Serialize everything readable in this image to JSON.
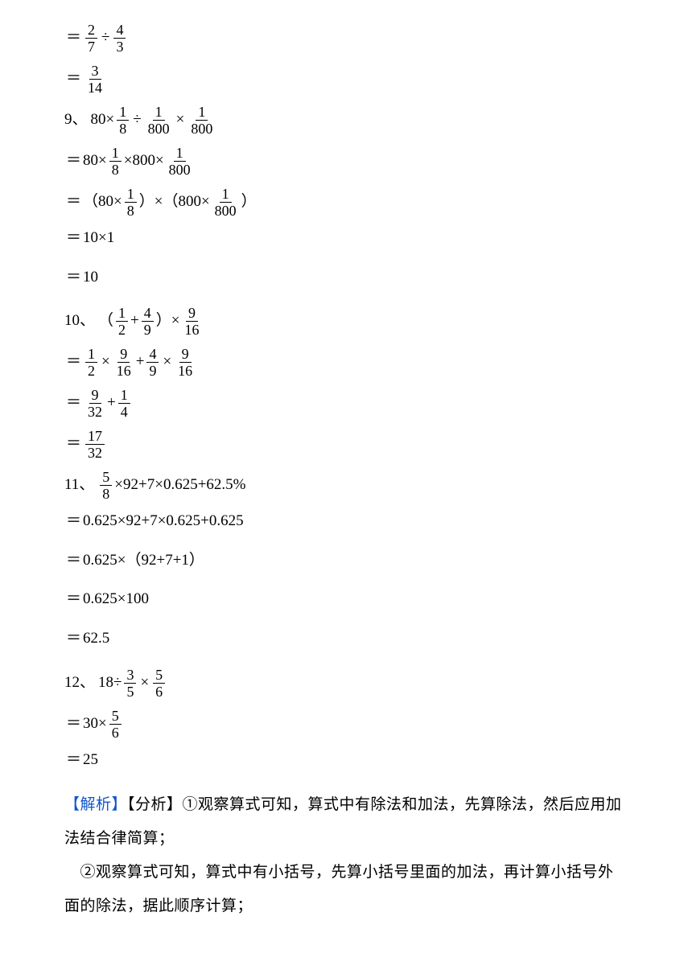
{
  "colors": {
    "text": "#000000",
    "link": "#1155cc",
    "background": "#ffffff",
    "border": "#000000"
  },
  "typography": {
    "body_fontsize": 19,
    "frac_fontsize": 18,
    "line_height_body": 1.4,
    "line_height_explain": 2.2,
    "font_family": "SimSun / 宋体"
  },
  "lines": [
    {
      "type": "math",
      "eq": true,
      "segments": [
        {
          "t": "frac",
          "n": "2",
          "d": "7"
        },
        {
          "t": "op",
          "v": "÷"
        },
        {
          "t": "frac",
          "n": "4",
          "d": "3"
        }
      ]
    },
    {
      "type": "math",
      "eq": true,
      "segments": [
        {
          "t": "frac",
          "n": "3",
          "d": "14"
        }
      ]
    },
    {
      "type": "math",
      "eq": false,
      "prefix": "9、",
      "segments": [
        {
          "t": "text",
          "v": "80×"
        },
        {
          "t": "frac",
          "n": "1",
          "d": "8"
        },
        {
          "t": "op",
          "v": "÷"
        },
        {
          "t": "frac",
          "n": "1",
          "d": "800"
        },
        {
          "t": "op",
          "v": "×"
        },
        {
          "t": "frac",
          "n": "1",
          "d": "800"
        }
      ]
    },
    {
      "type": "math",
      "eq": true,
      "eqstyle": "＝",
      "segments": [
        {
          "t": "text",
          "v": "80×"
        },
        {
          "t": "frac",
          "n": "1",
          "d": "8"
        },
        {
          "t": "text",
          "v": "×800×"
        },
        {
          "t": "frac",
          "n": "1",
          "d": "800"
        }
      ]
    },
    {
      "type": "math",
      "eq": true,
      "eqstyle": "＝",
      "segments": [
        {
          "t": "text",
          "v": "（80×"
        },
        {
          "t": "frac",
          "n": "1",
          "d": "8"
        },
        {
          "t": "text",
          "v": "）×（800×"
        },
        {
          "t": "frac",
          "n": "1",
          "d": "800"
        },
        {
          "t": "text",
          "v": "）"
        }
      ]
    },
    {
      "type": "math",
      "eq": true,
      "eqstyle": "＝",
      "wide": true,
      "segments": [
        {
          "t": "text",
          "v": "10×1"
        }
      ]
    },
    {
      "type": "math",
      "eq": true,
      "eqstyle": "＝",
      "wide": true,
      "segments": [
        {
          "t": "text",
          "v": "10"
        }
      ]
    },
    {
      "type": "math",
      "eq": false,
      "prefix": "10、",
      "segments": [
        {
          "t": "text",
          "v": "（"
        },
        {
          "t": "frac",
          "n": "1",
          "d": "2"
        },
        {
          "t": "text",
          "v": "+"
        },
        {
          "t": "frac",
          "n": "4",
          "d": "9"
        },
        {
          "t": "text",
          "v": "）×"
        },
        {
          "t": "frac",
          "n": "9",
          "d": "16"
        }
      ]
    },
    {
      "type": "math",
      "eq": true,
      "segments": [
        {
          "t": "frac",
          "n": "1",
          "d": "2"
        },
        {
          "t": "op",
          "v": "×"
        },
        {
          "t": "frac",
          "n": "9",
          "d": "16"
        },
        {
          "t": "text",
          "v": "+"
        },
        {
          "t": "frac",
          "n": "4",
          "d": "9"
        },
        {
          "t": "op",
          "v": "×"
        },
        {
          "t": "frac",
          "n": "9",
          "d": "16"
        }
      ]
    },
    {
      "type": "math",
      "eq": true,
      "segments": [
        {
          "t": "frac",
          "n": "9",
          "d": "32"
        },
        {
          "t": "text",
          "v": "+"
        },
        {
          "t": "frac",
          "n": "1",
          "d": "4"
        }
      ]
    },
    {
      "type": "math",
      "eq": true,
      "segments": [
        {
          "t": "frac",
          "n": "17",
          "d": "32"
        }
      ]
    },
    {
      "type": "math",
      "eq": false,
      "prefix": "11、",
      "segments": [
        {
          "t": "frac",
          "n": "5",
          "d": "8"
        },
        {
          "t": "text",
          "v": "×92+7×0.625+62.5%"
        }
      ]
    },
    {
      "type": "math",
      "eq": true,
      "eqstyle": "＝",
      "wide": true,
      "segments": [
        {
          "t": "text",
          "v": "0.625×92+7×0.625+0.625"
        }
      ]
    },
    {
      "type": "math",
      "eq": true,
      "eqstyle": "＝",
      "wide": true,
      "segments": [
        {
          "t": "text",
          "v": "0.625×（92+7+1）"
        }
      ]
    },
    {
      "type": "math",
      "eq": true,
      "eqstyle": "＝",
      "wide": true,
      "segments": [
        {
          "t": "text",
          "v": "0.625×100"
        }
      ]
    },
    {
      "type": "math",
      "eq": true,
      "eqstyle": "＝",
      "wide": true,
      "segments": [
        {
          "t": "text",
          "v": "62.5"
        }
      ]
    },
    {
      "type": "math",
      "eq": false,
      "prefix": "12、",
      "segments": [
        {
          "t": "text",
          "v": "18÷"
        },
        {
          "t": "frac",
          "n": "3",
          "d": "5"
        },
        {
          "t": "op",
          "v": "×"
        },
        {
          "t": "frac",
          "n": "5",
          "d": "6"
        }
      ]
    },
    {
      "type": "math",
      "eq": true,
      "eqstyle": "＝",
      "segments": [
        {
          "t": "text",
          "v": "30×"
        },
        {
          "t": "frac",
          "n": "5",
          "d": "6"
        }
      ]
    },
    {
      "type": "math",
      "eq": true,
      "eqstyle": "＝",
      "wide": true,
      "segments": [
        {
          "t": "text",
          "v": "25"
        }
      ]
    }
  ],
  "explain": {
    "label_analysis": "【解析】",
    "label_breakdown": "【分析】",
    "para1": "①观察算式可知，算式中有除法和加法，先算除法，然后应用加法结合律简算；",
    "para2": "　②观察算式可知，算式中有小括号，先算小括号里面的加法，再计算小括号外面的除法，据此顺序计算；"
  }
}
